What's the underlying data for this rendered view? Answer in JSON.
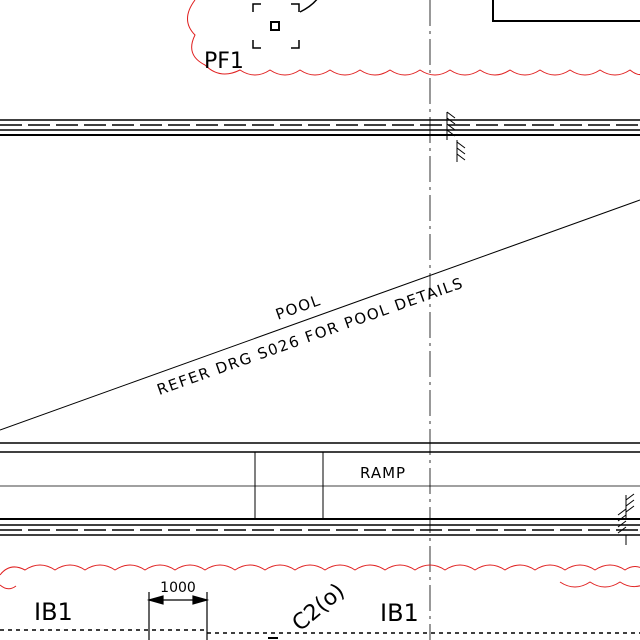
{
  "drawing": {
    "colors": {
      "linework": "#000000",
      "revision_cloud": "#e02020",
      "background": "#ffffff"
    },
    "labels": {
      "pf1": "PF1",
      "pool": "POOL",
      "pool_refer": "REFER DRG S026 FOR POOL DETAILS",
      "ramp": "RAMP",
      "ib1_left": "IB1",
      "ib1_right": "IB1",
      "column_c2o": "C2(o)",
      "dimension_1000": "1000"
    },
    "icons": {
      "column_marker": "square-column-icon",
      "hatch": "earth-hatch-icon",
      "arrow": "dimension-arrow-icon"
    }
  }
}
